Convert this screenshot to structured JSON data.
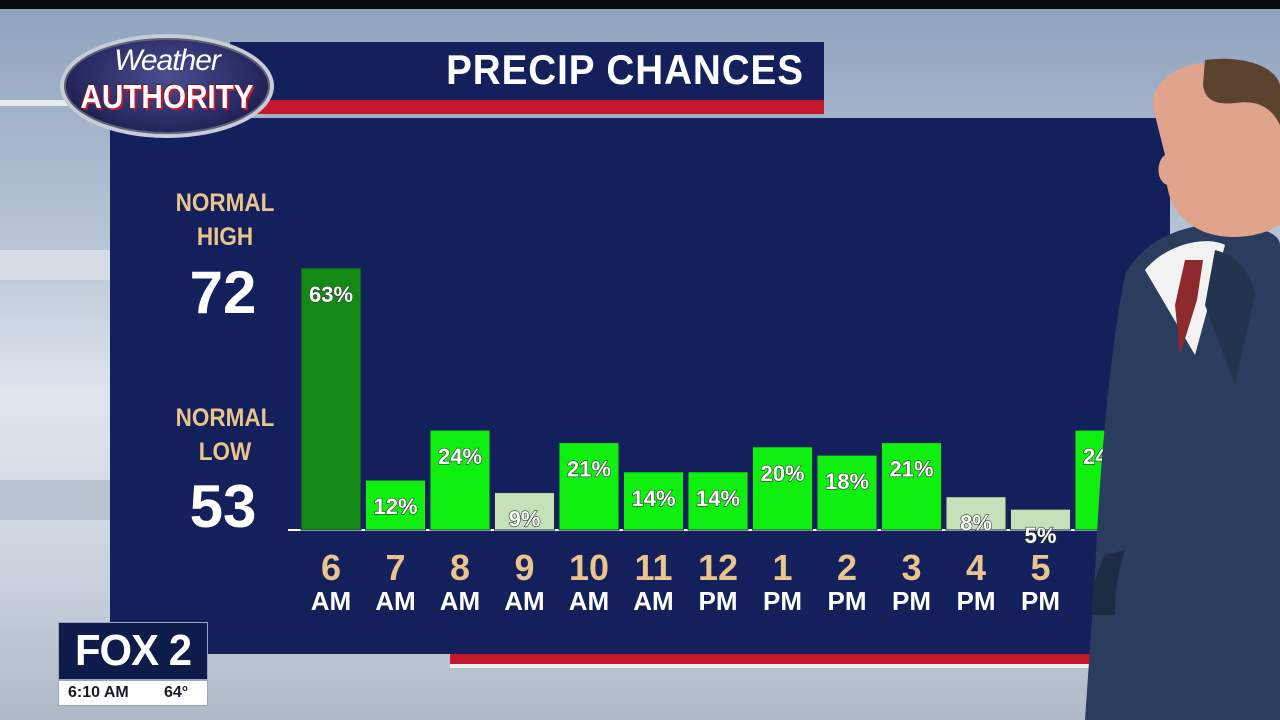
{
  "brand": {
    "logo_line1": "Weather",
    "logo_line2": "AUTHORITY"
  },
  "title": "PRECIP CHANCES",
  "stats": {
    "high_label_1": "NORMAL",
    "high_label_2": "HIGH",
    "high_value": "72",
    "low_label_1": "NORMAL",
    "low_label_2": "LOW",
    "low_value": "53"
  },
  "station": {
    "logo_text": "FOX 2",
    "time": "6:10 AM",
    "temp": "64°"
  },
  "colors": {
    "panel": "#14205c",
    "accent_red": "#c6182d",
    "label_gold": "#e9c48c",
    "bar_dark_green": "#138a15",
    "bar_green": "#10f010",
    "bar_pale": "#c6e0ba"
  },
  "chart_data": {
    "type": "bar",
    "title": "PRECIP CHANCES",
    "categories": [
      {
        "hour": "6",
        "period": "AM"
      },
      {
        "hour": "7",
        "period": "AM"
      },
      {
        "hour": "8",
        "period": "AM"
      },
      {
        "hour": "9",
        "period": "AM"
      },
      {
        "hour": "10",
        "period": "AM"
      },
      {
        "hour": "11",
        "period": "AM"
      },
      {
        "hour": "12",
        "period": "PM"
      },
      {
        "hour": "1",
        "period": "PM"
      },
      {
        "hour": "2",
        "period": "PM"
      },
      {
        "hour": "3",
        "period": "PM"
      },
      {
        "hour": "4",
        "period": "PM"
      },
      {
        "hour": "5",
        "period": "PM"
      },
      {
        "hour": "",
        "period": ""
      }
    ],
    "values": [
      63,
      12,
      24,
      9,
      21,
      14,
      14,
      20,
      18,
      21,
      8,
      5,
      24
    ],
    "labels": [
      "63%",
      "12%",
      "24%",
      "9%",
      "21%",
      "14%",
      "14%",
      "20%",
      "18%",
      "21%",
      "8%",
      "5%",
      "24%"
    ],
    "unit": "%",
    "ylim": [
      0,
      100
    ]
  }
}
